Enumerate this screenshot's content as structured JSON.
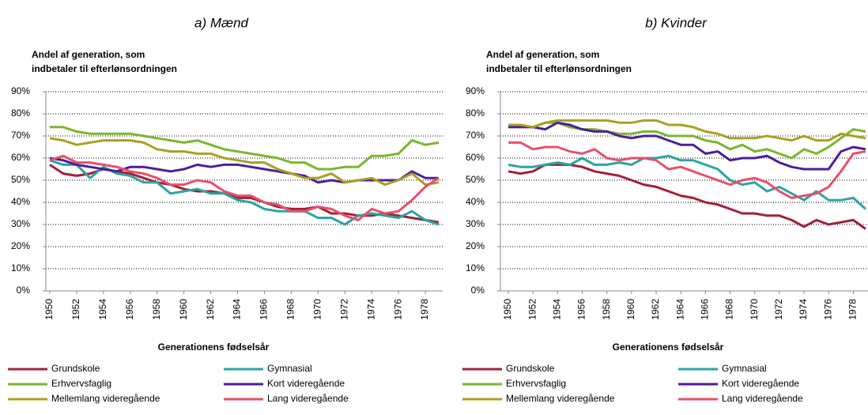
{
  "chart_data": [
    {
      "type": "line",
      "title": "a) Mænd",
      "ylabel": [
        "Andel af generation, som",
        "indbetaler til efterlønsordningen"
      ],
      "xlabel": "Generationens fødselsår",
      "x": [
        1950,
        1951,
        1952,
        1953,
        1954,
        1955,
        1956,
        1957,
        1958,
        1959,
        1960,
        1961,
        1962,
        1963,
        1964,
        1965,
        1966,
        1967,
        1968,
        1969,
        1970,
        1971,
        1972,
        1973,
        1974,
        1975,
        1976,
        1977,
        1978,
        1979
      ],
      "xlim": [
        1950,
        1979
      ],
      "xticks": [
        1950,
        1952,
        1954,
        1956,
        1958,
        1960,
        1962,
        1964,
        1966,
        1968,
        1970,
        1972,
        1974,
        1976,
        1978
      ],
      "ylim": [
        0,
        90
      ],
      "yticks": [
        {
          "value": 0,
          "label": "0%"
        },
        {
          "value": 10,
          "label": "10%"
        },
        {
          "value": 20,
          "label": "20%"
        },
        {
          "value": 30,
          "label": "30%"
        },
        {
          "value": 40,
          "label": "40%"
        },
        {
          "value": 50,
          "label": "50%"
        },
        {
          "value": 60,
          "label": "60%"
        },
        {
          "value": 70,
          "label": "70%"
        },
        {
          "value": 80,
          "label": "80%"
        },
        {
          "value": 90,
          "label": "90%"
        }
      ],
      "grid": true,
      "series": [
        {
          "name": "Grundskole",
          "color": "#a0203a",
          "values": [
            57,
            53,
            52,
            53,
            55,
            54,
            53,
            51,
            49,
            48,
            46,
            45,
            45,
            44,
            42,
            42,
            40,
            38,
            37,
            37,
            38,
            35,
            35,
            34,
            34,
            35,
            34,
            33,
            32,
            31
          ]
        },
        {
          "name": "Gymnasial",
          "color": "#2aa5a0",
          "values": [
            59,
            57,
            57,
            51,
            56,
            53,
            52,
            49,
            49,
            44,
            45,
            46,
            44,
            44,
            41,
            40,
            37,
            36,
            36,
            36,
            33,
            33,
            30,
            34,
            35,
            34,
            33,
            36,
            32,
            30
          ]
        },
        {
          "name": "Erhvervsfaglig",
          "color": "#7ab62e",
          "values": [
            74,
            74,
            72,
            71,
            71,
            71,
            71,
            70,
            69,
            68,
            67,
            68,
            66,
            64,
            63,
            62,
            61,
            60,
            58,
            58,
            55,
            55,
            56,
            56,
            61,
            61,
            62,
            68,
            66,
            67
          ]
        },
        {
          "name": "Kort videregående",
          "color": "#4b1e9b",
          "values": [
            60,
            59,
            57,
            56,
            55,
            54,
            56,
            56,
            55,
            54,
            55,
            57,
            56,
            57,
            57,
            56,
            55,
            54,
            53,
            52,
            49,
            50,
            49,
            50,
            50,
            50,
            50,
            54,
            51,
            51
          ]
        },
        {
          "name": "Mellemlang videregående",
          "color": "#a8a022",
          "values": [
            69,
            68,
            66,
            67,
            68,
            68,
            68,
            67,
            64,
            63,
            63,
            62,
            62,
            60,
            59,
            58,
            58,
            55,
            53,
            51,
            51,
            53,
            49,
            50,
            51,
            48,
            50,
            53,
            48,
            49
          ]
        },
        {
          "name": "Lang videregående",
          "color": "#e8506a",
          "values": [
            59,
            61,
            58,
            58,
            57,
            56,
            54,
            53,
            51,
            48,
            48,
            50,
            49,
            45,
            43,
            43,
            40,
            39,
            36,
            36,
            38,
            37,
            34,
            32,
            37,
            35,
            36,
            41,
            47,
            51
          ]
        }
      ]
    },
    {
      "type": "line",
      "title": "b) Kvinder",
      "ylabel": [
        "Andel af generation, som",
        "indbetaler til efterlønsordningen"
      ],
      "xlabel": "Generationens fødselsår",
      "x": [
        1950,
        1951,
        1952,
        1953,
        1954,
        1955,
        1956,
        1957,
        1958,
        1959,
        1960,
        1961,
        1962,
        1963,
        1964,
        1965,
        1966,
        1967,
        1968,
        1969,
        1970,
        1971,
        1972,
        1973,
        1974,
        1975,
        1976,
        1977,
        1978,
        1979
      ],
      "xlim": [
        1950,
        1979
      ],
      "xticks": [
        1950,
        1952,
        1954,
        1956,
        1958,
        1960,
        1962,
        1964,
        1966,
        1968,
        1970,
        1972,
        1974,
        1976,
        1978
      ],
      "ylim": [
        0,
        90
      ],
      "yticks": [
        {
          "value": 0,
          "label": "0%"
        },
        {
          "value": 10,
          "label": "10%"
        },
        {
          "value": 20,
          "label": "20%"
        },
        {
          "value": 30,
          "label": "30%"
        },
        {
          "value": 40,
          "label": "40%"
        },
        {
          "value": 50,
          "label": "50%"
        },
        {
          "value": 60,
          "label": "60%"
        },
        {
          "value": 70,
          "label": "70%"
        },
        {
          "value": 80,
          "label": "80%"
        },
        {
          "value": 90,
          "label": "90%"
        }
      ],
      "grid": true,
      "series": [
        {
          "name": "Grundskole",
          "color": "#a0203a",
          "values": [
            54,
            53,
            54,
            57,
            57,
            57,
            56,
            54,
            53,
            52,
            50,
            48,
            47,
            45,
            43,
            42,
            40,
            39,
            37,
            35,
            35,
            34,
            34,
            32,
            29,
            32,
            30,
            31,
            32,
            28
          ]
        },
        {
          "name": "Gymnasial",
          "color": "#2aa5a0",
          "values": [
            57,
            56,
            56,
            57,
            58,
            57,
            60,
            57,
            57,
            58,
            57,
            60,
            60,
            61,
            59,
            59,
            57,
            55,
            50,
            48,
            49,
            45,
            47,
            44,
            41,
            45,
            41,
            41,
            42,
            37
          ]
        },
        {
          "name": "Erhvervsfaglig",
          "color": "#7ab62e",
          "values": [
            74,
            74,
            74,
            76,
            76,
            74,
            73,
            73,
            72,
            71,
            71,
            72,
            72,
            70,
            70,
            70,
            68,
            67,
            64,
            66,
            63,
            64,
            62,
            60,
            64,
            62,
            65,
            69,
            73,
            72
          ]
        },
        {
          "name": "Kort videregående",
          "color": "#4b1e9b",
          "values": [
            74,
            74,
            74,
            73,
            76,
            75,
            73,
            72,
            72,
            70,
            69,
            70,
            70,
            68,
            66,
            66,
            62,
            63,
            59,
            60,
            60,
            61,
            58,
            56,
            55,
            55,
            55,
            63,
            65,
            64
          ]
        },
        {
          "name": "Mellemlang videregående",
          "color": "#a8a022",
          "values": [
            75,
            75,
            74,
            76,
            77,
            77,
            77,
            77,
            77,
            76,
            76,
            77,
            77,
            75,
            75,
            74,
            72,
            71,
            69,
            69,
            69,
            70,
            69,
            68,
            70,
            68,
            68,
            71,
            70,
            69
          ]
        },
        {
          "name": "Lang videregående",
          "color": "#e8506a",
          "values": [
            67,
            67,
            64,
            65,
            65,
            63,
            62,
            64,
            60,
            59,
            60,
            60,
            59,
            55,
            56,
            54,
            52,
            50,
            48,
            50,
            51,
            49,
            45,
            42,
            43,
            44,
            47,
            54,
            62,
            63
          ]
        }
      ]
    }
  ]
}
